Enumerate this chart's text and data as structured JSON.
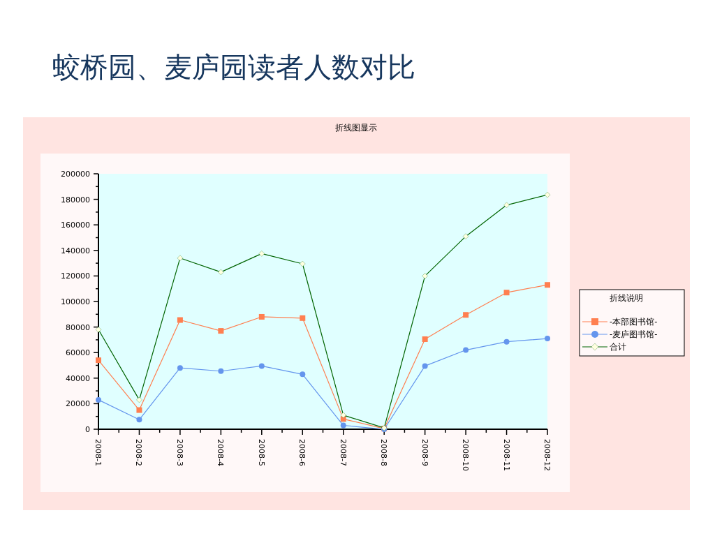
{
  "chart_data": {
    "type": "line",
    "title": "蛟桥园、麦庐园读者人数对比",
    "subtitle": "折线图显示",
    "legend_title": "折线说明",
    "categories": [
      "2008-1",
      "2008-2",
      "2008-3",
      "2008-4",
      "2008-5",
      "2008-6",
      "2008-7",
      "2008-8",
      "2008-9",
      "2008-10",
      "2008-11",
      "2008-12"
    ],
    "series": [
      {
        "name": "-本部图书馆-",
        "color": "#ff7f50",
        "marker": "square",
        "values": [
          54000,
          15000,
          85500,
          77000,
          88000,
          87000,
          8000,
          500,
          70500,
          89500,
          107000,
          113000
        ]
      },
      {
        "name": "-麦庐图书馆-",
        "color": "#6495ed",
        "marker": "circle",
        "values": [
          23000,
          7500,
          48000,
          45500,
          49500,
          43000,
          3000,
          0,
          49500,
          62000,
          68500,
          71000
        ]
      },
      {
        "name": "合计",
        "color": "#006400",
        "marker": "diamond",
        "values": [
          78000,
          23000,
          134000,
          123000,
          137500,
          129500,
          11000,
          1000,
          120000,
          151000,
          175500,
          183500
        ]
      }
    ],
    "ylim": [
      0,
      200000
    ],
    "yticks": [
      0,
      20000,
      40000,
      60000,
      80000,
      100000,
      120000,
      140000,
      160000,
      180000,
      200000
    ],
    "legend": "right",
    "grid": false
  }
}
